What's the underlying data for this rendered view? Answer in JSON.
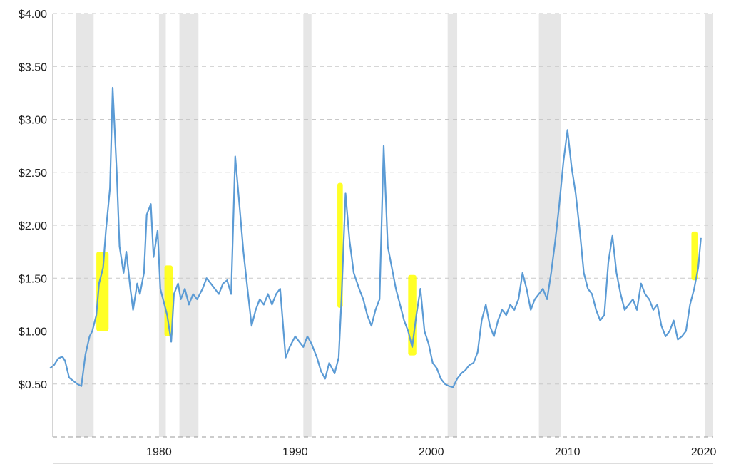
{
  "chart_data": {
    "type": "line",
    "title": "",
    "xlabel": "",
    "ylabel": "",
    "xlim": [
      1972.2,
      2020.7
    ],
    "ylim": [
      0,
      4.0
    ],
    "grid": true,
    "x_ticks": [
      1980,
      1990,
      2000,
      2010,
      2020
    ],
    "x_tick_labels": [
      "1980",
      "1990",
      "2000",
      "2010",
      "2020"
    ],
    "y_ticks": [
      0.5,
      1.0,
      1.5,
      2.0,
      2.5,
      3.0,
      3.5,
      4.0
    ],
    "y_tick_labels": [
      "$0.50",
      "$1.00",
      "$1.50",
      "$2.00",
      "$2.50",
      "$3.00",
      "$3.50",
      "$4.00"
    ],
    "recessions": [
      [
        1973.9,
        1975.2
      ],
      [
        1980.0,
        1980.5
      ],
      [
        1981.5,
        1982.9
      ],
      [
        1990.6,
        1991.2
      ],
      [
        2001.2,
        2001.9
      ],
      [
        2007.9,
        2009.5
      ],
      [
        2020.1,
        2020.7
      ]
    ],
    "highlights": [
      {
        "x0": 1975.4,
        "x1": 1976.3,
        "y0": 1.0,
        "y1": 1.75
      },
      {
        "x0": 1980.4,
        "x1": 1981.0,
        "y0": 0.95,
        "y1": 1.62
      },
      {
        "x0": 1993.1,
        "x1": 1993.5,
        "y0": 1.22,
        "y1": 2.4
      },
      {
        "x0": 1998.3,
        "x1": 1998.9,
        "y0": 0.77,
        "y1": 1.53
      },
      {
        "x0": 2019.1,
        "x1": 2019.6,
        "y0": 1.48,
        "y1": 1.94
      }
    ],
    "series": [
      {
        "color": "#5b9bd5",
        "x": [
          1972.0,
          1972.3,
          1972.6,
          1972.9,
          1973.1,
          1973.4,
          1973.7,
          1974.0,
          1974.3,
          1974.6,
          1974.9,
          1975.1,
          1975.4,
          1975.6,
          1975.9,
          1976.1,
          1976.4,
          1976.6,
          1976.9,
          1977.1,
          1977.4,
          1977.6,
          1977.9,
          1978.1,
          1978.4,
          1978.6,
          1978.9,
          1979.1,
          1979.4,
          1979.6,
          1979.9,
          1980.1,
          1980.4,
          1980.6,
          1980.9,
          1981.1,
          1981.4,
          1981.6,
          1981.9,
          1982.2,
          1982.5,
          1982.8,
          1983.2,
          1983.5,
          1983.8,
          1984.1,
          1984.4,
          1984.7,
          1985.0,
          1985.3,
          1985.6,
          1985.9,
          1986.2,
          1986.5,
          1986.8,
          1987.1,
          1987.4,
          1987.7,
          1988.0,
          1988.3,
          1988.6,
          1988.9,
          1989.3,
          1989.6,
          1990.0,
          1990.3,
          1990.6,
          1990.9,
          1991.2,
          1991.6,
          1991.9,
          1992.2,
          1992.5,
          1992.9,
          1993.2,
          1993.4,
          1993.7,
          1994.0,
          1994.3,
          1994.7,
          1995.0,
          1995.3,
          1995.6,
          1995.9,
          1996.2,
          1996.5,
          1996.8,
          1997.1,
          1997.4,
          1997.7,
          1998.0,
          1998.3,
          1998.6,
          1998.9,
          1999.2,
          1999.5,
          1999.8,
          2000.1,
          2000.4,
          2000.7,
          2001.0,
          2001.3,
          2001.6,
          2001.9,
          2002.2,
          2002.5,
          2002.8,
          2003.1,
          2003.4,
          2003.7,
          2004.0,
          2004.3,
          2004.6,
          2004.9,
          2005.2,
          2005.5,
          2005.8,
          2006.1,
          2006.4,
          2006.7,
          2007.0,
          2007.3,
          2007.6,
          2007.9,
          2008.2,
          2008.5,
          2008.8,
          2009.1,
          2009.4,
          2009.7,
          2010.0,
          2010.3,
          2010.6,
          2010.9,
          2011.2,
          2011.5,
          2011.8,
          2012.1,
          2012.4,
          2012.7,
          2013.0,
          2013.3,
          2013.6,
          2013.9,
          2014.2,
          2014.5,
          2014.8,
          2015.1,
          2015.4,
          2015.7,
          2016.0,
          2016.3,
          2016.6,
          2016.9,
          2017.2,
          2017.5,
          2017.8,
          2018.1,
          2018.4,
          2018.7,
          2019.0,
          2019.3,
          2019.6,
          2019.8
        ],
        "y": [
          0.65,
          0.68,
          0.74,
          0.76,
          0.72,
          0.56,
          0.53,
          0.5,
          0.48,
          0.78,
          0.95,
          1.0,
          1.15,
          1.45,
          1.6,
          1.95,
          2.35,
          3.3,
          2.5,
          1.8,
          1.55,
          1.75,
          1.4,
          1.2,
          1.45,
          1.35,
          1.55,
          2.1,
          2.2,
          1.7,
          1.95,
          1.4,
          1.25,
          1.15,
          0.9,
          1.35,
          1.45,
          1.3,
          1.4,
          1.25,
          1.35,
          1.3,
          1.4,
          1.5,
          1.45,
          1.4,
          1.35,
          1.45,
          1.48,
          1.35,
          2.65,
          2.2,
          1.75,
          1.4,
          1.05,
          1.2,
          1.3,
          1.25,
          1.35,
          1.25,
          1.35,
          1.4,
          0.75,
          0.85,
          0.95,
          0.9,
          0.85,
          0.95,
          0.88,
          0.75,
          0.62,
          0.55,
          0.7,
          0.6,
          0.75,
          1.3,
          2.3,
          1.85,
          1.55,
          1.4,
          1.3,
          1.15,
          1.05,
          1.2,
          1.3,
          2.75,
          1.8,
          1.6,
          1.4,
          1.25,
          1.1,
          1.0,
          0.85,
          1.15,
          1.4,
          1.0,
          0.88,
          0.7,
          0.65,
          0.55,
          0.5,
          0.48,
          0.47,
          0.55,
          0.6,
          0.63,
          0.68,
          0.7,
          0.8,
          1.1,
          1.25,
          1.05,
          0.95,
          1.1,
          1.2,
          1.15,
          1.25,
          1.2,
          1.3,
          1.55,
          1.4,
          1.2,
          1.3,
          1.35,
          1.4,
          1.3,
          1.55,
          1.85,
          2.2,
          2.6,
          2.9,
          2.55,
          2.3,
          1.95,
          1.55,
          1.4,
          1.35,
          1.2,
          1.1,
          1.15,
          1.65,
          1.9,
          1.55,
          1.35,
          1.2,
          1.25,
          1.3,
          1.2,
          1.45,
          1.35,
          1.3,
          1.2,
          1.25,
          1.05,
          0.95,
          1.0,
          1.1,
          0.92,
          0.95,
          1.0,
          1.25,
          1.4,
          1.6,
          1.88
        ]
      }
    ]
  }
}
